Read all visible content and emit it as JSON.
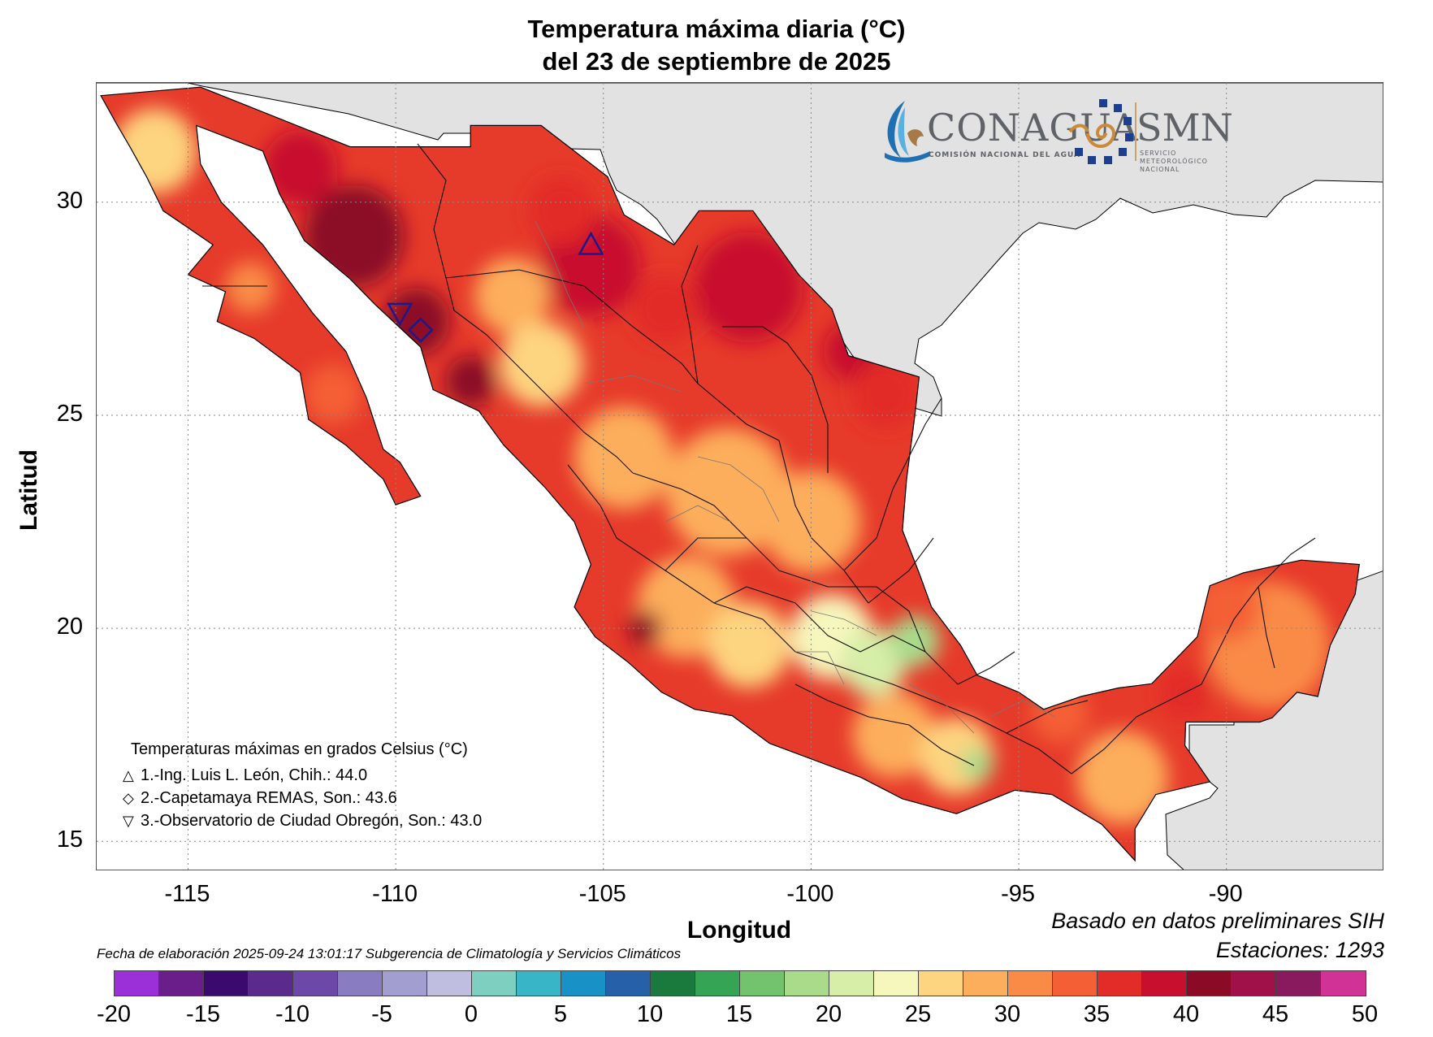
{
  "title": {
    "line1": "Temperatura máxima diaria (°C)",
    "line2": "del 23 de septiembre de 2025"
  },
  "axes": {
    "xlabel": "Longitud",
    "ylabel": "Latitud",
    "x_ticks": [
      "-115",
      "-110",
      "-105",
      "-100",
      "-95",
      "-90"
    ],
    "y_ticks": [
      "30",
      "25",
      "20",
      "15"
    ],
    "x_range": [
      -117.2,
      -86.2
    ],
    "y_range": [
      14.3,
      32.8
    ],
    "grid": "dotted"
  },
  "logos": {
    "conagua_name": "CONAGUA",
    "conagua_sub": "COMISIÓN NACIONAL DEL AGUA",
    "smn_name": "SMN",
    "smn_sub_1": "SERVICIO",
    "smn_sub_2": "METEOROLÓGICO",
    "smn_sub_3": "NACIONAL"
  },
  "legend": {
    "heading": "Temperaturas máximas en grados Celsius (°C)",
    "entries": [
      {
        "marker": "△",
        "text": "1.-Ing. Luis L. León, Chih.: 44.0",
        "lon": -105.3,
        "lat": 29.0,
        "shape": "triangle-up"
      },
      {
        "marker": "◇",
        "text": "2.-Capetamaya REMAS, Son.: 43.6",
        "lon": -109.4,
        "lat": 27.0,
        "shape": "diamond"
      },
      {
        "marker": "▽",
        "text": "3.-Observatorio de Ciudad Obregón, Son.: 43.0",
        "lon": -109.9,
        "lat": 27.4,
        "shape": "triangle-down"
      }
    ]
  },
  "notes": {
    "source": "Basado en datos preliminares SIH",
    "stations": "Estaciones:  1293",
    "credit": "Fecha de elaboración 2025-09-24 13:01:17 Subgerencia de Climatología y Servicios Climáticos"
  },
  "colorbar": {
    "labels": [
      "-20",
      "-15",
      "-10",
      "-5",
      "0",
      "5",
      "10",
      "15",
      "20",
      "25",
      "30",
      "35",
      "40",
      "45",
      "50"
    ],
    "min": -20,
    "max": 50,
    "step": 2.5,
    "colors": [
      "#9b30d9",
      "#6a1e8a",
      "#3b0a6e",
      "#5a2a8c",
      "#6c48a8",
      "#8a7cc0",
      "#a39ed0",
      "#bfbde0",
      "#7fcfc0",
      "#38b6c7",
      "#1891c6",
      "#2560a8",
      "#1a7a3e",
      "#36a455",
      "#73c26e",
      "#a9db8b",
      "#d6eea8",
      "#f6f7bc",
      "#fdd47f",
      "#fcae5c",
      "#f98b46",
      "#f45f36",
      "#e22c28",
      "#c8102e",
      "#8b0a25",
      "#a0114a",
      "#8a1a5e",
      "#d03394"
    ]
  },
  "colors": {
    "sea": "#ffffff",
    "neighbor_land": "#e2e2e2",
    "base_land": "#e63a2a"
  }
}
